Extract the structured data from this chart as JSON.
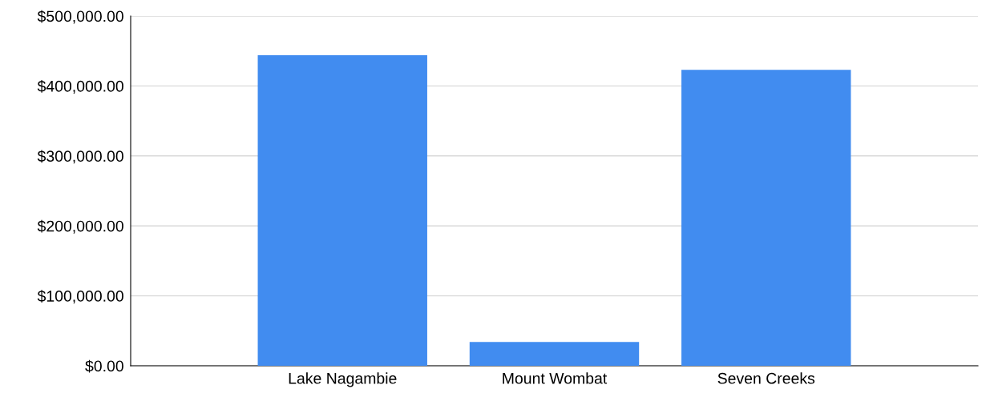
{
  "chart_data": {
    "type": "bar",
    "categories": [
      "Lake Nagambie",
      "Mount Wombat",
      "Seven Creeks"
    ],
    "values": [
      444000,
      34000,
      423000
    ],
    "color": "#418cf0",
    "ylim": [
      0,
      500000
    ],
    "yticks": [
      {
        "value": 0,
        "label": "$0.00"
      },
      {
        "value": 100000,
        "label": "$100,000.00"
      },
      {
        "value": 200000,
        "label": "$200,000.00"
      },
      {
        "value": 300000,
        "label": "$300,000.00"
      },
      {
        "value": 400000,
        "label": "$400,000.00"
      },
      {
        "value": 500000,
        "label": "$500,000.00"
      }
    ],
    "grid": "y",
    "legend": false
  }
}
